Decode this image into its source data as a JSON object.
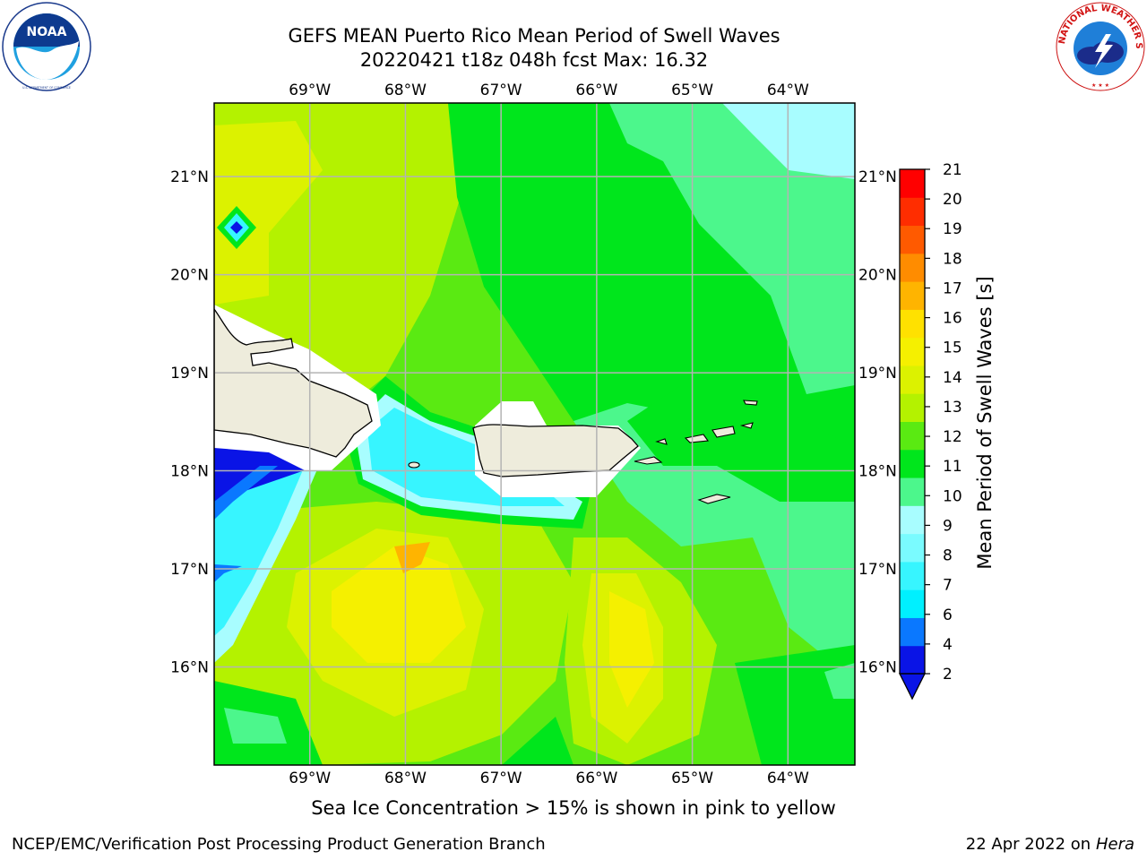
{
  "header": {
    "title_line1": "GEFS MEAN Puerto Rico Mean Period of Swell Waves",
    "title_line2": "20220421 t18z 048h fcst   Max: 16.32"
  },
  "map": {
    "region": "Puerto Rico",
    "lon_labels": [
      "69°W",
      "68°W",
      "67°W",
      "66°W",
      "65°W",
      "64°W"
    ],
    "lat_labels": [
      "21°N",
      "20°N",
      "19°N",
      "18°N",
      "17°N",
      "16°N"
    ],
    "lon_values": [
      -69,
      -68,
      -67,
      -66,
      -65,
      -64
    ],
    "lat_values": [
      21,
      20,
      19,
      18,
      17,
      16
    ],
    "lon_range": [
      -70,
      -63.3
    ],
    "lat_range": [
      15.0,
      21.75
    ],
    "grid": true,
    "land_color": "#eeecdc"
  },
  "colorbar": {
    "label": "Mean Period of Swell Waves [s]",
    "ticks": [
      "21",
      "20",
      "19",
      "18",
      "17",
      "16",
      "15",
      "14",
      "13",
      "12",
      "11",
      "10",
      "9",
      "8",
      "7",
      "6",
      "4",
      "2"
    ],
    "levels": [
      2,
      4,
      6,
      7,
      8,
      9,
      10,
      11,
      12,
      13,
      14,
      15,
      16,
      17,
      18,
      19,
      20,
      21
    ],
    "colors": [
      "#0a14e6",
      "#0a78ff",
      "#00f0ff",
      "#37f5ff",
      "#7afbff",
      "#a8fdff",
      "#4cf78c",
      "#00e61c",
      "#5aea12",
      "#b4f200",
      "#dcf200",
      "#f5f000",
      "#ffe100",
      "#ffb400",
      "#ff8c00",
      "#ff5a00",
      "#ff2d00",
      "#ff0000"
    ],
    "extend_min_color": "#0a14e6"
  },
  "footer": {
    "subtitle": "Sea Ice Concentration > 15% is shown in pink to yellow",
    "credit": "NCEP/EMC/Verification Post Processing Product Generation Branch",
    "date_prefix": "22 Apr 2022 on ",
    "machine": "Hera"
  },
  "logos": {
    "noaa_text": "NOAA",
    "noaa_ring_text": "NATIONAL OCEANIC AND ATMOSPHERIC ADMINISTRATION · U.S. DEPARTMENT OF COMMERCE",
    "nws_ring_text": "NATIONAL WEATHER SERVICE"
  }
}
